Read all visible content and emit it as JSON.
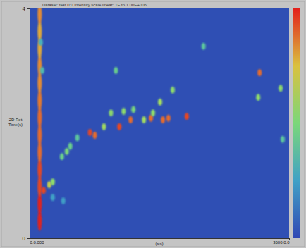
{
  "chart_data": {
    "type": "scatter",
    "title": "Dataset: test 0:0    Intensity scale linear: 1E to 1.00E+006",
    "y_label": "2D Ret Time(s)",
    "x_label": "(s:s)",
    "xlim": [
      0,
      3600
    ],
    "xticks": [
      {
        "value": 0,
        "label": "0:0.000"
      },
      {
        "value": 3600,
        "label": "3600:0.0"
      }
    ],
    "ylim": [
      0,
      4
    ],
    "yticks": [
      0,
      4
    ],
    "x": [
      140,
      140,
      140,
      140,
      140,
      140,
      140,
      140,
      140,
      140,
      140,
      140,
      140,
      175,
      155,
      195,
      272,
      321,
      448,
      516,
      564,
      662,
      837,
      905,
      1031,
      1129,
      1245,
      1304,
      1401,
      1440,
      1586,
      1683,
      1712,
      1810,
      1849,
      1926,
      1985,
      2180,
      2413,
      1197,
      3191,
      3483,
      3172,
      3511,
      321,
      467
    ],
    "values": [
      0.3,
      0.6,
      0.9,
      1.2,
      1.5,
      1.8,
      2.1,
      2.4,
      2.7,
      3.0,
      3.3,
      3.6,
      3.9,
      2.92,
      3.41,
      0.83,
      0.93,
      0.98,
      1.42,
      1.51,
      1.6,
      1.75,
      1.84,
      1.79,
      1.94,
      2.18,
      1.94,
      2.21,
      2.06,
      2.24,
      2.06,
      2.09,
      2.18,
      2.37,
      2.06,
      2.09,
      2.58,
      2.12,
      3.34,
      2.92,
      2.88,
      2.61,
      2.45,
      1.72,
      0.71,
      0.65
    ],
    "intensity": [
      100,
      100,
      95,
      95,
      90,
      90,
      90,
      88,
      85,
      85,
      80,
      80,
      85,
      35,
      30,
      95,
      70,
      55,
      45,
      50,
      45,
      40,
      95,
      90,
      60,
      55,
      95,
      55,
      90,
      50,
      60,
      90,
      55,
      60,
      90,
      90,
      55,
      95,
      40,
      45,
      90,
      55,
      55,
      40,
      25,
      25
    ],
    "colorbar": {
      "range": [
        0,
        100
      ]
    }
  }
}
